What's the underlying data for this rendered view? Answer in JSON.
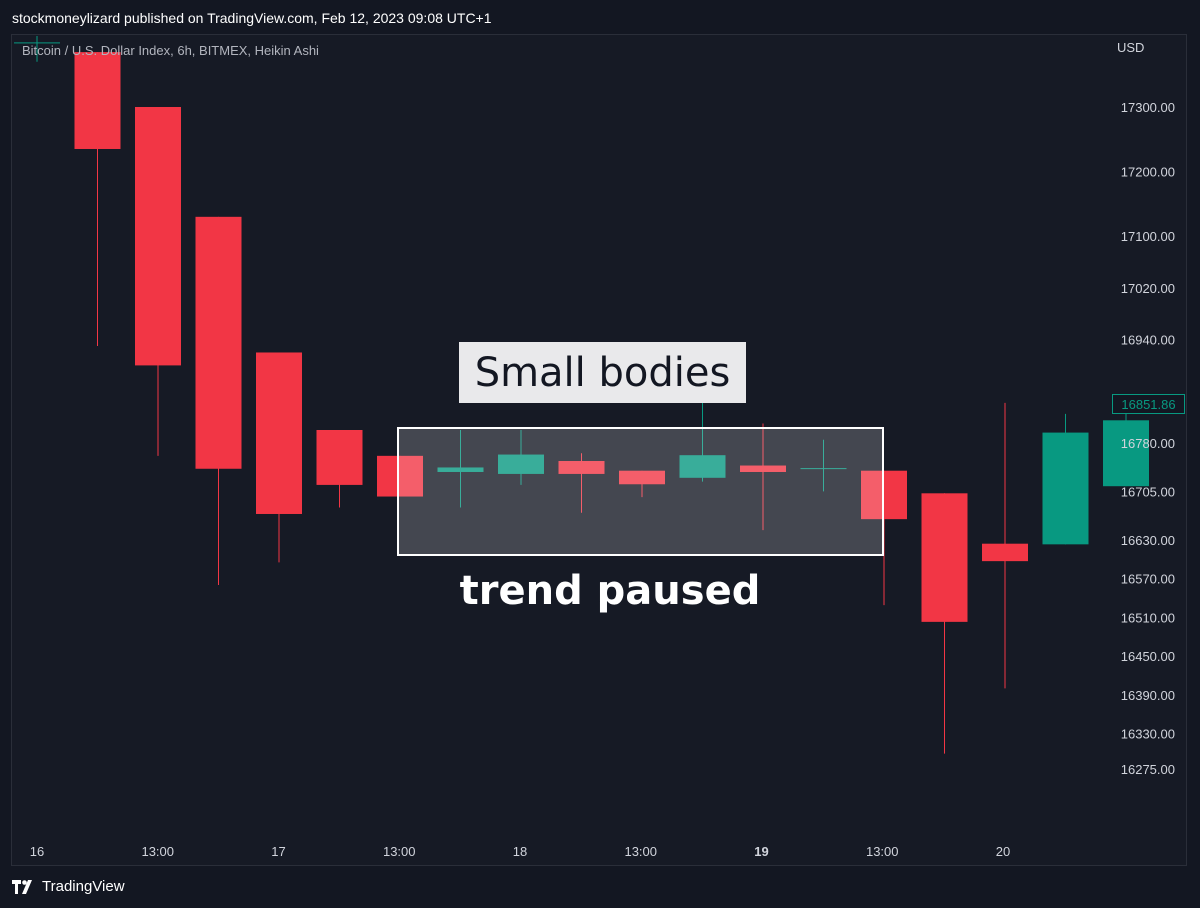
{
  "header": {
    "published_text": "stockmoneylizard published on TradingView.com, Feb 12, 2023 09:08 UTC+1"
  },
  "footer": {
    "brand": "TradingView"
  },
  "chart_data": {
    "type": "candlestick",
    "symbol_legend": "Bitcoin / U.S. Dollar Index, 6h, BITMEX, Heikin Ashi",
    "currency": "USD",
    "last_price_label": "16851.86",
    "colors": {
      "up": "#089981",
      "down": "#f23645",
      "highlight_box_border": "#ffffff",
      "price_tag": "#089981"
    },
    "y_ticks": [
      "17300.00",
      "17200.00",
      "17100.00",
      "17020.00",
      "16940.00",
      "16851.86",
      "16780.00",
      "16705.00",
      "16630.00",
      "16570.00",
      "16510.00",
      "16450.00",
      "16390.00",
      "16330.00",
      "16275.00"
    ],
    "x_ticks": [
      "16",
      "13:00",
      "17",
      "13:00",
      "18",
      "13:00",
      "19",
      "13:00",
      "20"
    ],
    "candles": [
      {
        "open": 17400,
        "close": 17400,
        "high": 17410,
        "low": 17370
      },
      {
        "open": 17385,
        "close": 17235,
        "high": 17385,
        "low": 16930
      },
      {
        "open": 17300,
        "close": 16900,
        "high": 17300,
        "low": 16760
      },
      {
        "open": 17130,
        "close": 16740,
        "high": 17130,
        "low": 16560
      },
      {
        "open": 16920,
        "close": 16670,
        "high": 16920,
        "low": 16595
      },
      {
        "open": 16800,
        "close": 16715,
        "high": 16800,
        "low": 16680
      },
      {
        "open": 16760,
        "close": 16697,
        "high": 16760,
        "low": 16697
      },
      {
        "open": 16735,
        "close": 16742,
        "high": 16800,
        "low": 16680
      },
      {
        "open": 16732,
        "close": 16762,
        "high": 16800,
        "low": 16715
      },
      {
        "open": 16752,
        "close": 16732,
        "high": 16764,
        "low": 16672
      },
      {
        "open": 16737,
        "close": 16716,
        "high": 16737,
        "low": 16696
      },
      {
        "open": 16726,
        "close": 16761,
        "high": 16860,
        "low": 16720
      },
      {
        "open": 16745,
        "close": 16735,
        "high": 16810,
        "low": 16645
      },
      {
        "open": 16741,
        "close": 16741,
        "high": 16785,
        "low": 16705
      },
      {
        "open": 16737,
        "close": 16662,
        "high": 16737,
        "low": 16529
      },
      {
        "open": 16702,
        "close": 16503,
        "high": 16702,
        "low": 16299
      },
      {
        "open": 16624,
        "close": 16597,
        "high": 16842,
        "low": 16400
      },
      {
        "open": 16623,
        "close": 16796,
        "high": 16825,
        "low": 16623
      },
      {
        "open": 16713,
        "close": 16815,
        "high": 16825,
        "low": 16713
      }
    ],
    "annotations": {
      "box_label": "Small bodies",
      "below_label": "trend paused"
    }
  }
}
